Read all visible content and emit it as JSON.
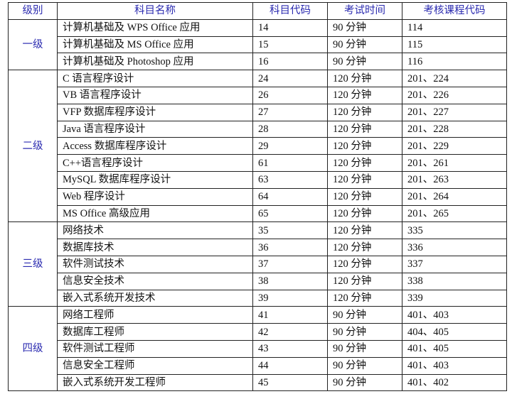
{
  "header": [
    "级别",
    "科目名称",
    "科目代码",
    "考试时间",
    "考核课程代码"
  ],
  "colors": {
    "header_text": "#2b2bb0",
    "level_text": "#2b2bb0",
    "border": "#222222"
  },
  "groups": [
    {
      "level": "一级",
      "rows": [
        [
          "计算机基础及 WPS Office 应用",
          "14",
          "90 分钟",
          "114"
        ],
        [
          "计算机基础及 MS Office 应用",
          "15",
          "90 分钟",
          "115"
        ],
        [
          "计算机基础及 Photoshop 应用",
          "16",
          "90 分钟",
          "116"
        ]
      ]
    },
    {
      "level": "二级",
      "rows": [
        [
          "C 语言程序设计",
          "24",
          "120 分钟",
          "201、224"
        ],
        [
          "VB 语言程序设计",
          "26",
          "120 分钟",
          "201、226"
        ],
        [
          "VFP 数据库程序设计",
          "27",
          "120 分钟",
          "201、227"
        ],
        [
          "Java 语言程序设计",
          "28",
          "120 分钟",
          "201、228"
        ],
        [
          "Access 数据库程序设计",
          "29",
          "120 分钟",
          "201、229"
        ],
        [
          "C++语言程序设计",
          "61",
          "120 分钟",
          "201、261"
        ],
        [
          "MySQL 数据库程序设计",
          "63",
          "120 分钟",
          "201、263"
        ],
        [
          "Web 程序设计",
          "64",
          "120 分钟",
          "201、264"
        ],
        [
          "MS Office 高级应用",
          "65",
          "120 分钟",
          "201、265"
        ]
      ]
    },
    {
      "level": "三级",
      "rows": [
        [
          "网络技术",
          "35",
          "120 分钟",
          "335"
        ],
        [
          "数据库技术",
          "36",
          "120 分钟",
          "336"
        ],
        [
          "软件测试技术",
          "37",
          "120 分钟",
          "337"
        ],
        [
          "信息安全技术",
          "38",
          "120 分钟",
          "338"
        ],
        [
          "嵌入式系统开发技术",
          "39",
          "120 分钟",
          "339"
        ]
      ]
    },
    {
      "level": "四级",
      "rows": [
        [
          "网络工程师",
          "41",
          "90 分钟",
          "401、403"
        ],
        [
          "数据库工程师",
          "42",
          "90 分钟",
          "404、405"
        ],
        [
          "软件测试工程师",
          "43",
          "90 分钟",
          "401、405"
        ],
        [
          "信息安全工程师",
          "44",
          "90 分钟",
          "401、403"
        ],
        [
          "嵌入式系统开发工程师",
          "45",
          "90 分钟",
          "401、402"
        ]
      ]
    }
  ]
}
